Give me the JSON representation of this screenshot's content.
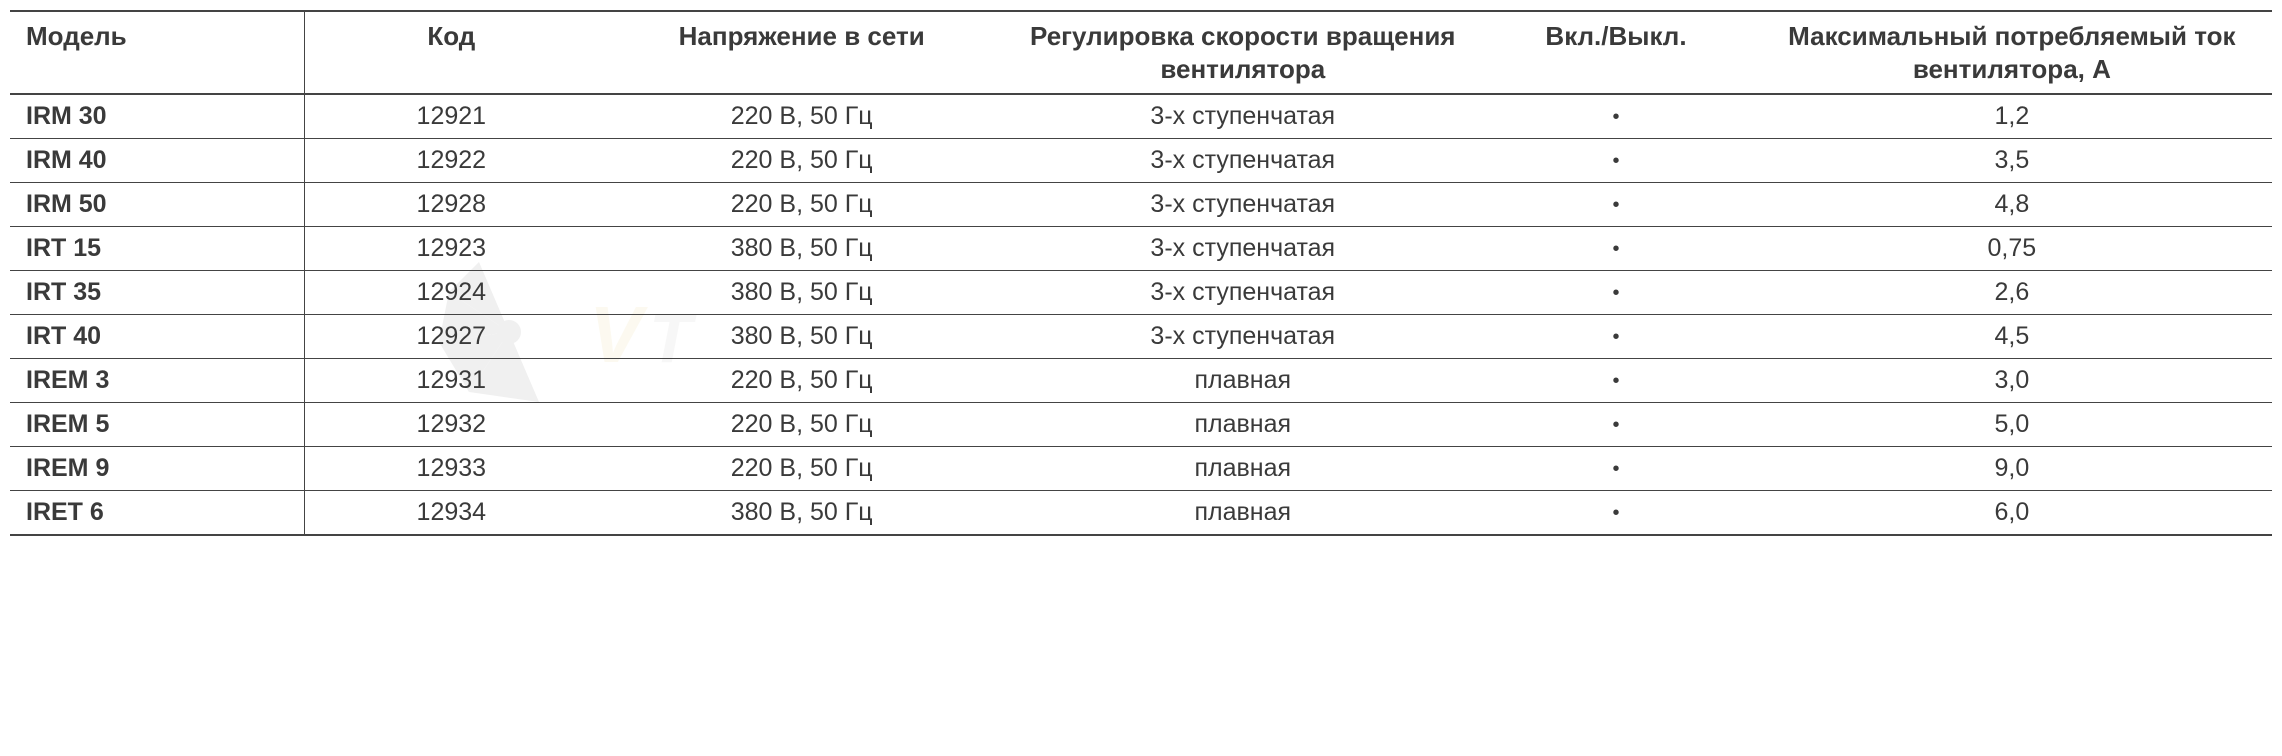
{
  "table": {
    "columns": [
      "Модель",
      "Код",
      "Напряжение в сети",
      "Регулировка скорости вращения вентилятора",
      "Вкл./Выкл.",
      "Максимальный потребляемый ток вентилятора, А"
    ],
    "rows": [
      {
        "model": "IRM 30",
        "code": "12921",
        "voltage": "220 В, 50 Гц",
        "speed": "3-х ступенчатая",
        "onoff": "•",
        "current": "1,2"
      },
      {
        "model": "IRM 40",
        "code": "12922",
        "voltage": "220 В, 50 Гц",
        "speed": "3-х ступенчатая",
        "onoff": "•",
        "current": "3,5"
      },
      {
        "model": "IRM 50",
        "code": "12928",
        "voltage": "220 В, 50 Гц",
        "speed": "3-х ступенчатая",
        "onoff": "•",
        "current": "4,8"
      },
      {
        "model": "IRT 15",
        "code": "12923",
        "voltage": "380 В, 50 Гц",
        "speed": "3-х ступенчатая",
        "onoff": "•",
        "current": "0,75"
      },
      {
        "model": "IRT 35",
        "code": "12924",
        "voltage": "380 В, 50 Гц",
        "speed": "3-х ступенчатая",
        "onoff": "•",
        "current": "2,6"
      },
      {
        "model": "IRT 40",
        "code": "12927",
        "voltage": "380 В, 50 Гц",
        "speed": "3-х ступенчатая",
        "onoff": "•",
        "current": "4,5"
      },
      {
        "model": "IREM 3",
        "code": "12931",
        "voltage": "220 В, 50 Гц",
        "speed": "плавная",
        "onoff": "•",
        "current": "3,0"
      },
      {
        "model": "IREM 5",
        "code": "12932",
        "voltage": "220 В, 50 Гц",
        "speed": "плавная",
        "onoff": "•",
        "current": "5,0"
      },
      {
        "model": "IREM 9",
        "code": "12933",
        "voltage": "220 В, 50 Гц",
        "speed": "плавная",
        "onoff": "•",
        "current": "9,0"
      },
      {
        "model": "IRET 6",
        "code": "12934",
        "voltage": "380 В, 50 Гц",
        "speed": "плавная",
        "onoff": "•",
        "current": "6,0"
      }
    ],
    "styling": {
      "header_font_size": 26,
      "cell_font_size": 25,
      "text_color": "#3a3a3a",
      "border_color": "#444444",
      "background_color": "#ffffff",
      "header_border_bottom_width": 2,
      "row_border_bottom_width": 1,
      "column_widths_pct": [
        13,
        13,
        18,
        21,
        12,
        23
      ],
      "column_alignments": [
        "left",
        "center",
        "center",
        "center",
        "center",
        "center"
      ],
      "first_column_bold": true
    }
  },
  "watermark": {
    "fan_color": "#888888",
    "text_color": "#d8b838",
    "opacity": 0.12
  }
}
